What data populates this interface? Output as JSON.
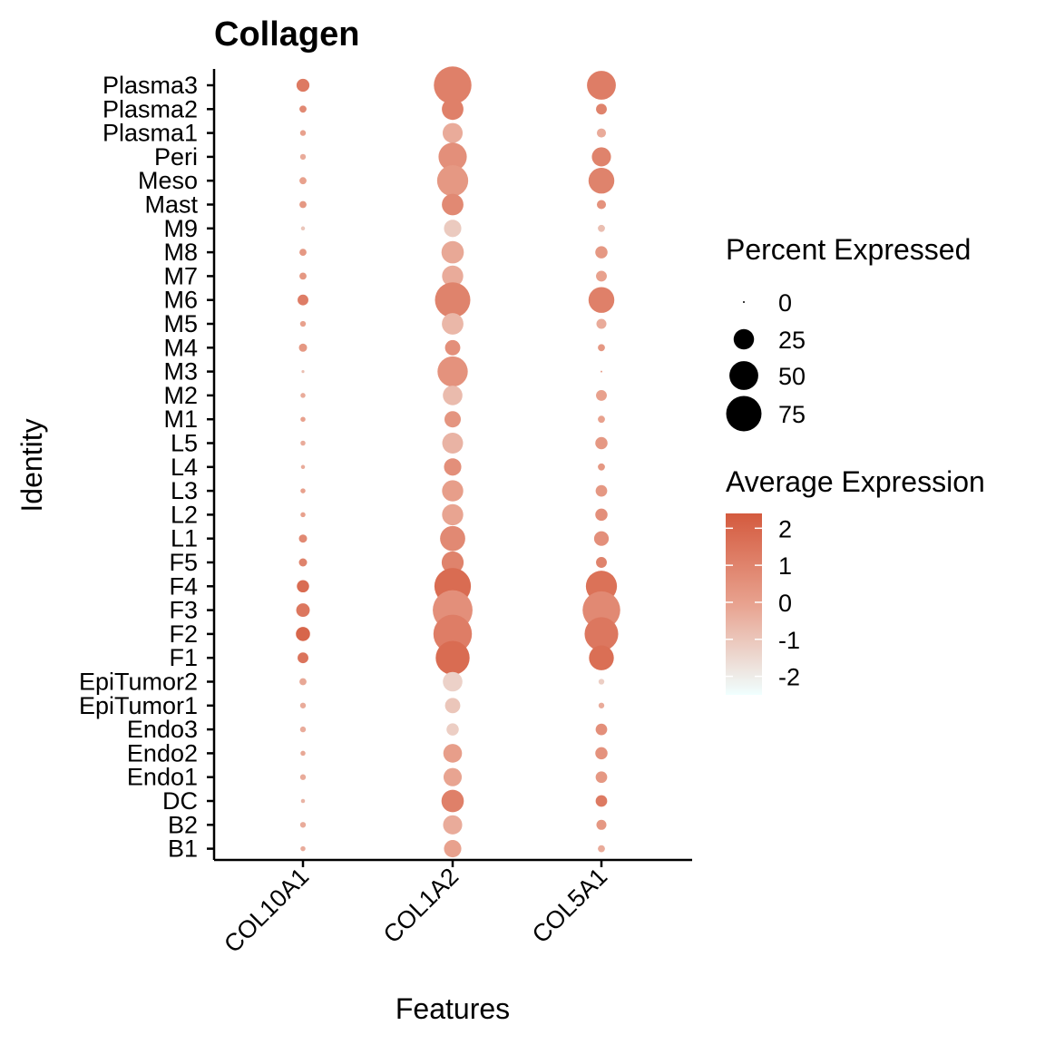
{
  "chart_data": {
    "type": "dotplot",
    "title": "Collagen",
    "xlabel": "Features",
    "ylabel": "Identity",
    "features": [
      "COL10A1",
      "COL1A2",
      "COL5A1"
    ],
    "identities": [
      "Plasma3",
      "Plasma2",
      "Plasma1",
      "Peri",
      "Meso",
      "Mast",
      "M9",
      "M8",
      "M7",
      "M6",
      "M5",
      "M4",
      "M3",
      "M2",
      "M1",
      "L5",
      "L4",
      "L3",
      "L2",
      "L1",
      "F5",
      "F4",
      "F3",
      "F2",
      "F1",
      "EpiTumor2",
      "EpiTumor1",
      "Endo3",
      "Endo2",
      "Endo1",
      "DC",
      "B2",
      "B1"
    ],
    "series": [
      {
        "name": "COL10A1",
        "percent_expressed": [
          10,
          3,
          2,
          2,
          3,
          3,
          1,
          3,
          3,
          7,
          2,
          4,
          0.5,
          1.5,
          1.5,
          1.5,
          1,
          1.5,
          1.5,
          4,
          4,
          9,
          11,
          12,
          7,
          3,
          2,
          2,
          1.5,
          2,
          1,
          2,
          1.5
        ],
        "average_expression": [
          1.3,
          0.8,
          0.0,
          -0.3,
          0.0,
          0.3,
          -1.0,
          0.3,
          0.3,
          1.2,
          0.0,
          0.3,
          -0.8,
          -0.3,
          0.0,
          -0.3,
          -0.3,
          0.0,
          0.0,
          0.8,
          1.0,
          1.8,
          1.4,
          2.0,
          1.5,
          -0.2,
          -0.3,
          -0.3,
          -0.2,
          -0.3,
          -0.5,
          -0.3,
          -0.3
        ]
      },
      {
        "name": "COL1A2",
        "percent_expressed": [
          85,
          28,
          24,
          48,
          58,
          28,
          18,
          30,
          27,
          75,
          28,
          14,
          55,
          23,
          16,
          26,
          18,
          27,
          27,
          38,
          29,
          80,
          95,
          89,
          69,
          23,
          14,
          9,
          21,
          20,
          30,
          22,
          18
        ],
        "average_expression": [
          1.1,
          1.1,
          -0.3,
          0.6,
          0.3,
          0.8,
          -1.1,
          -0.2,
          -0.3,
          1.0,
          -0.6,
          0.6,
          0.5,
          -0.7,
          0.4,
          -0.5,
          0.6,
          0.1,
          -0.1,
          0.8,
          1.0,
          1.8,
          0.6,
          1.2,
          1.8,
          -1.3,
          -1.0,
          -1.2,
          0.1,
          -0.1,
          1.1,
          -0.3,
          0.0
        ]
      },
      {
        "name": "COL5A1",
        "percent_expressed": [
          50,
          7,
          5,
          22,
          40,
          5,
          3,
          9,
          7,
          40,
          6,
          3,
          0,
          7,
          3,
          9,
          3,
          8,
          9,
          13,
          7,
          58,
          85,
          68,
          37,
          2,
          2,
          8,
          9,
          8,
          8,
          6,
          3
        ],
        "average_expression": [
          1.2,
          1.0,
          -0.3,
          1.0,
          1.0,
          0.5,
          -0.8,
          0.3,
          0.0,
          1.1,
          -0.3,
          0.3,
          0.0,
          0.0,
          0.0,
          0.3,
          0.3,
          0.3,
          0.6,
          0.6,
          1.0,
          1.6,
          0.8,
          1.4,
          1.7,
          -1.2,
          -0.3,
          0.6,
          0.5,
          0.3,
          1.3,
          0.3,
          -0.3
        ]
      }
    ],
    "legend": {
      "size_title": "Percent Expressed",
      "size_breaks": [
        0,
        25,
        50,
        75
      ],
      "size_labels": [
        "0",
        "25",
        "50",
        "75"
      ],
      "color_title": "Average Expression",
      "color_breaks": [
        2,
        1,
        0,
        -1,
        -2
      ],
      "color_labels": [
        "2",
        "1",
        "0",
        "-1",
        "-2"
      ],
      "color_range": [
        -2.5,
        2.4
      ],
      "color_low": "#f0ffff",
      "color_mid": "#e8a28f",
      "color_high": "#d45a3e",
      "position": "right"
    }
  }
}
